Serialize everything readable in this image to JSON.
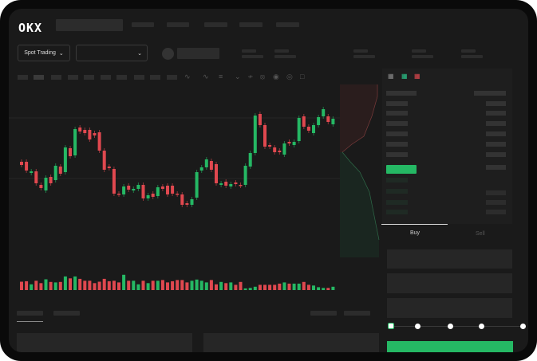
{
  "header": {
    "logo": "OKX"
  },
  "market_selector": {
    "label": "Spot Trading",
    "chevron": "chevron-down-icon"
  },
  "pair_selector": {
    "chevron": "chevron-down-icon"
  },
  "toolbar_icons": [
    "indicator-icon",
    "indicator-icon",
    "chevron-down-icon",
    "line-icon",
    "ruler-icon",
    "camera-icon",
    "settings-icon",
    "fullscreen-icon"
  ],
  "orderbook": {
    "layout_icons": [
      "both-sides-icon",
      "bids-icon",
      "asks-icon"
    ]
  },
  "order_form": {
    "tabs": [
      "Buy",
      "Sell"
    ],
    "active_tab": "Buy",
    "slider_percent": 0,
    "slider_stops": 5
  },
  "colors": {
    "up": "#25b864",
    "down": "#e0484f",
    "background": "#1a1a1a"
  },
  "chart_data": {
    "type": "candlestick",
    "candles": [
      [
        97,
        93
      ],
      [
        97,
        86
      ],
      [
        83,
        85
      ],
      [
        85,
        70
      ],
      [
        68,
        64
      ],
      [
        61,
        77
      ],
      [
        78,
        70
      ],
      [
        74,
        92
      ],
      [
        91,
        82
      ],
      [
        84,
        115
      ],
      [
        114,
        104
      ],
      [
        105,
        138
      ],
      [
        140,
        135
      ],
      [
        137,
        133
      ],
      [
        137,
        125
      ],
      [
        133,
        130
      ],
      [
        134,
        111
      ],
      [
        111,
        87
      ],
      [
        91,
        89
      ],
      [
        88,
        57
      ],
      [
        57,
        56
      ],
      [
        56,
        66
      ],
      [
        67,
        62
      ],
      [
        61,
        63
      ],
      [
        63,
        68
      ],
      [
        68,
        51
      ],
      [
        51,
        55
      ],
      [
        57,
        53
      ],
      [
        54,
        65
      ],
      [
        66,
        63
      ],
      [
        67,
        56
      ],
      [
        67,
        57
      ],
      [
        57,
        56
      ],
      [
        56,
        43
      ],
      [
        45,
        43
      ],
      [
        43,
        50
      ],
      [
        52,
        84
      ],
      [
        86,
        90
      ],
      [
        90,
        100
      ],
      [
        98,
        87
      ],
      [
        94,
        70
      ],
      [
        68,
        70
      ],
      [
        72,
        67
      ],
      [
        66,
        69
      ],
      [
        71,
        69
      ],
      [
        68,
        67
      ],
      [
        68,
        92
      ],
      [
        91,
        108
      ],
      [
        108,
        155
      ],
      [
        157,
        143
      ],
      [
        143,
        116
      ],
      [
        118,
        116
      ],
      [
        115,
        109
      ],
      [
        111,
        109
      ],
      [
        106,
        120
      ],
      [
        122,
        120
      ],
      [
        118,
        122
      ],
      [
        123,
        152
      ],
      [
        154,
        141
      ],
      [
        141,
        136
      ],
      [
        133,
        143
      ],
      [
        143,
        153
      ],
      [
        154,
        163
      ],
      [
        154,
        147
      ],
      [
        144,
        151
      ]
    ],
    "volume": [
      35,
      37,
      24,
      39,
      29,
      45,
      34,
      32,
      34,
      57,
      49,
      57,
      47,
      39,
      39,
      29,
      35,
      47,
      37,
      39,
      32,
      64,
      39,
      39,
      24,
      39,
      29,
      39,
      39,
      42,
      32,
      37,
      42,
      42,
      32,
      39,
      44,
      39,
      32,
      42,
      24,
      34,
      29,
      32,
      22,
      34,
      7,
      9,
      14,
      22,
      22,
      22,
      22,
      27,
      32,
      27,
      27,
      27,
      34,
      22,
      19,
      12,
      9,
      9,
      14
    ]
  }
}
